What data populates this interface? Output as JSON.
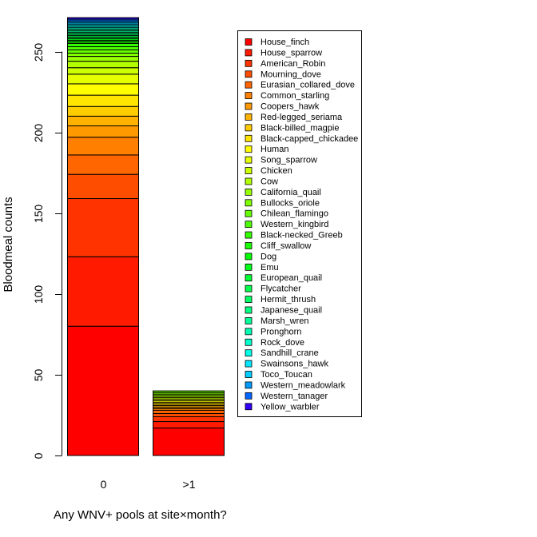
{
  "chart_data": {
    "type": "bar",
    "stacked": true,
    "ylabel": "Bloodmeal counts",
    "xlabel": "Any WNV+ pools at site×month?",
    "categories": [
      "0",
      ">1"
    ],
    "ylim": [
      0,
      263
    ],
    "yticks": [
      0,
      50,
      100,
      150,
      200,
      250
    ],
    "legend_position": "top-right",
    "series": [
      {
        "name": "House_finch",
        "values": [
          80,
          17
        ],
        "color": "#FF0000"
      },
      {
        "name": "House_sparrow",
        "values": [
          43,
          4
        ],
        "color": "#FF1A00"
      },
      {
        "name": "American_Robin",
        "values": [
          36,
          3
        ],
        "color": "#FF3300"
      },
      {
        "name": "Mourning_dove",
        "values": [
          15,
          2
        ],
        "color": "#FF4D00"
      },
      {
        "name": "Eurasian_collared_dove",
        "values": [
          12,
          2
        ],
        "color": "#FF6600"
      },
      {
        "name": "Common_starling",
        "values": [
          11,
          1
        ],
        "color": "#FF8000"
      },
      {
        "name": "Coopers_hawk",
        "values": [
          7,
          1
        ],
        "color": "#FF9900"
      },
      {
        "name": "Red-legged_seriama",
        "values": [
          6,
          1
        ],
        "color": "#FFB300"
      },
      {
        "name": "Black-billed_magpie",
        "values": [
          6,
          1
        ],
        "color": "#FFCC00"
      },
      {
        "name": "Black-capped_chickadee",
        "values": [
          7,
          1
        ],
        "color": "#FFE500"
      },
      {
        "name": "Human",
        "values": [
          7,
          1
        ],
        "color": "#FFFF00"
      },
      {
        "name": "Song_sparrow",
        "values": [
          6,
          1
        ],
        "color": "#E5FF00"
      },
      {
        "name": "Chicken",
        "values": [
          4,
          1
        ],
        "color": "#CCFF00"
      },
      {
        "name": "Cow",
        "values": [
          4,
          1
        ],
        "color": "#B3FF00"
      },
      {
        "name": "California_quail",
        "values": [
          3,
          1
        ],
        "color": "#99FF00"
      },
      {
        "name": "Bullocks_oriole",
        "values": [
          2,
          1
        ],
        "color": "#80FF00"
      },
      {
        "name": "Chilean_flamingo",
        "values": [
          2,
          1
        ],
        "color": "#66FF00"
      },
      {
        "name": "Western_kingbird",
        "values": [
          2,
          0
        ],
        "color": "#4DFF00"
      },
      {
        "name": "Black-necked_Greeb",
        "values": [
          2,
          0
        ],
        "color": "#33FF00"
      },
      {
        "name": "Cliff_swallow",
        "values": [
          1,
          0
        ],
        "color": "#1AFF00"
      },
      {
        "name": "Dog",
        "values": [
          1,
          0
        ],
        "color": "#00FF00"
      },
      {
        "name": "Emu",
        "values": [
          1,
          0
        ],
        "color": "#00FF1A"
      },
      {
        "name": "European_quail",
        "values": [
          1,
          0
        ],
        "color": "#00FF33"
      },
      {
        "name": "Flycatcher",
        "values": [
          1,
          0
        ],
        "color": "#00FF4D"
      },
      {
        "name": "Hermit_thrush",
        "values": [
          1,
          0
        ],
        "color": "#00FF66"
      },
      {
        "name": "Japanese_quail",
        "values": [
          1,
          0
        ],
        "color": "#00FF80"
      },
      {
        "name": "Marsh_wren",
        "values": [
          1,
          0
        ],
        "color": "#00FF99"
      },
      {
        "name": "Pronghorn",
        "values": [
          1,
          0
        ],
        "color": "#00FFB3"
      },
      {
        "name": "Rock_dove",
        "values": [
          1,
          0
        ],
        "color": "#00FFCC"
      },
      {
        "name": "Sandhill_crane",
        "values": [
          1,
          0
        ],
        "color": "#00FFE6"
      },
      {
        "name": "Swainsons_hawk",
        "values": [
          1,
          0
        ],
        "color": "#00E6FF"
      },
      {
        "name": "Toco_Toucan",
        "values": [
          1,
          0
        ],
        "color": "#00CCFF"
      },
      {
        "name": "Western_meadowlark",
        "values": [
          1,
          0
        ],
        "color": "#0099FF"
      },
      {
        "name": "Western_tanager",
        "values": [
          1,
          0
        ],
        "color": "#0066FF"
      },
      {
        "name": "Yellow_warbler",
        "values": [
          1,
          0
        ],
        "color": "#3300FF"
      }
    ]
  }
}
